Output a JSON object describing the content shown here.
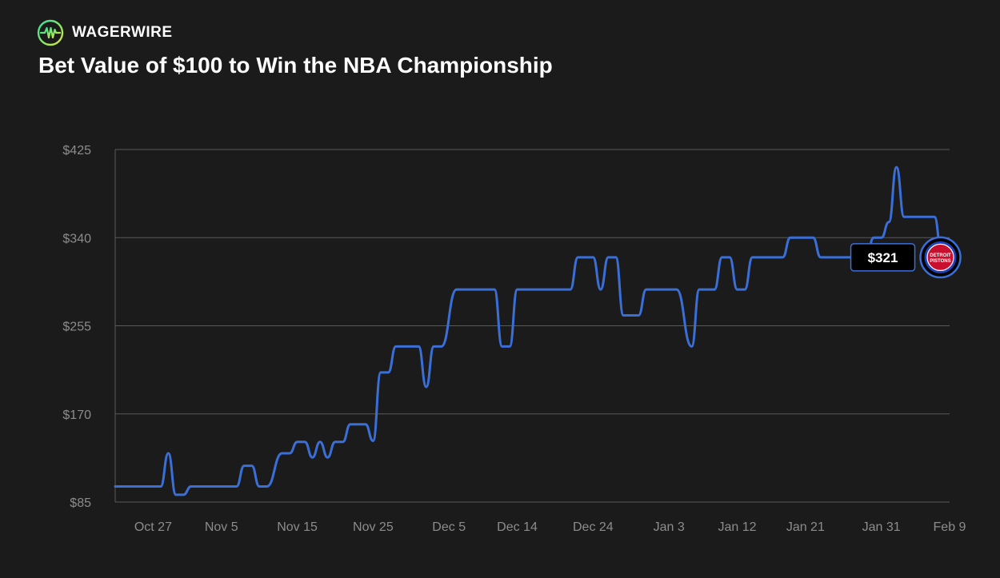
{
  "brand": {
    "name": "WAGERWIRE",
    "logo_icon": "pulse-circle-icon"
  },
  "colors": {
    "background": "#1b1b1b",
    "line": "#3b6fd8",
    "grid": "#5a5a5a",
    "badge_red": "#c8102e",
    "badge_blue": "#1d42ba"
  },
  "chart_data": {
    "type": "line",
    "title": "Bet Value of $100 to Win the NBA Championship",
    "xlabel": "",
    "ylabel": "",
    "ylim": [
      85,
      425
    ],
    "yticks": [
      {
        "label": "$425",
        "value": 425
      },
      {
        "label": "$340",
        "value": 340
      },
      {
        "label": "$255",
        "value": 255
      },
      {
        "label": "$170",
        "value": 170
      },
      {
        "label": "$85",
        "value": 85
      }
    ],
    "xlim": [
      "2024-10-22",
      "2025-02-09"
    ],
    "xticks": [
      {
        "label": "Oct 27",
        "date": "2024-10-27"
      },
      {
        "label": "Nov 5",
        "date": "2024-11-05"
      },
      {
        "label": "Nov 15",
        "date": "2024-11-15"
      },
      {
        "label": "Nov 25",
        "date": "2024-11-25"
      },
      {
        "label": "Dec 5",
        "date": "2024-12-05"
      },
      {
        "label": "Dec 14",
        "date": "2024-12-14"
      },
      {
        "label": "Dec 24",
        "date": "2024-12-24"
      },
      {
        "label": "Jan 3",
        "date": "2025-01-03"
      },
      {
        "label": "Jan 12",
        "date": "2025-01-12"
      },
      {
        "label": "Jan 21",
        "date": "2025-01-21"
      },
      {
        "label": "Jan 31",
        "date": "2025-01-31"
      },
      {
        "label": "Feb 9",
        "date": "2025-02-09"
      }
    ],
    "grid": true,
    "series": [
      {
        "points": [
          [
            "2024-10-22",
            100
          ],
          [
            "2024-10-28",
            100
          ],
          [
            "2024-10-29",
            132
          ],
          [
            "2024-10-30",
            92
          ],
          [
            "2024-10-31",
            92
          ],
          [
            "2024-11-01",
            100
          ],
          [
            "2024-11-07",
            100
          ],
          [
            "2024-11-08",
            120
          ],
          [
            "2024-11-09",
            120
          ],
          [
            "2024-11-10",
            100
          ],
          [
            "2024-11-11",
            100
          ],
          [
            "2024-11-13",
            132
          ],
          [
            "2024-11-14",
            132
          ],
          [
            "2024-11-15",
            143
          ],
          [
            "2024-11-16",
            143
          ],
          [
            "2024-11-17",
            128
          ],
          [
            "2024-11-18",
            143
          ],
          [
            "2024-11-19",
            128
          ],
          [
            "2024-11-20",
            143
          ],
          [
            "2024-11-21",
            143
          ],
          [
            "2024-11-22",
            160
          ],
          [
            "2024-11-24",
            160
          ],
          [
            "2024-11-25",
            144
          ],
          [
            "2024-11-26",
            210
          ],
          [
            "2024-11-27",
            210
          ],
          [
            "2024-11-28",
            235
          ],
          [
            "2024-12-01",
            235
          ],
          [
            "2024-12-02",
            196
          ],
          [
            "2024-12-03",
            235
          ],
          [
            "2024-12-04",
            235
          ],
          [
            "2024-12-06",
            290
          ],
          [
            "2024-12-11",
            290
          ],
          [
            "2024-12-12",
            235
          ],
          [
            "2024-12-13",
            235
          ],
          [
            "2024-12-14",
            290
          ],
          [
            "2024-12-21",
            290
          ],
          [
            "2024-12-22",
            321
          ],
          [
            "2024-12-24",
            321
          ],
          [
            "2024-12-25",
            290
          ],
          [
            "2024-12-26",
            321
          ],
          [
            "2024-12-27",
            321
          ],
          [
            "2024-12-28",
            265
          ],
          [
            "2024-12-30",
            265
          ],
          [
            "2024-12-31",
            290
          ],
          [
            "2025-01-04",
            290
          ],
          [
            "2025-01-06",
            235
          ],
          [
            "2025-01-07",
            290
          ],
          [
            "2025-01-09",
            290
          ],
          [
            "2025-01-10",
            321
          ],
          [
            "2025-01-11",
            321
          ],
          [
            "2025-01-12",
            290
          ],
          [
            "2025-01-13",
            290
          ],
          [
            "2025-01-14",
            321
          ],
          [
            "2025-01-18",
            321
          ],
          [
            "2025-01-19",
            340
          ],
          [
            "2025-01-22",
            340
          ],
          [
            "2025-01-23",
            321
          ],
          [
            "2025-01-29",
            321
          ],
          [
            "2025-01-30",
            340
          ],
          [
            "2025-01-31",
            340
          ],
          [
            "2025-02-01",
            355
          ],
          [
            "2025-02-02",
            408
          ],
          [
            "2025-02-03",
            360
          ],
          [
            "2025-02-07",
            360
          ],
          [
            "2025-02-08",
            321
          ]
        ]
      }
    ],
    "current_value": {
      "label": "$321",
      "value": 321
    },
    "team_badge": {
      "lines": [
        "DETROIT",
        "PISTONS"
      ]
    }
  }
}
